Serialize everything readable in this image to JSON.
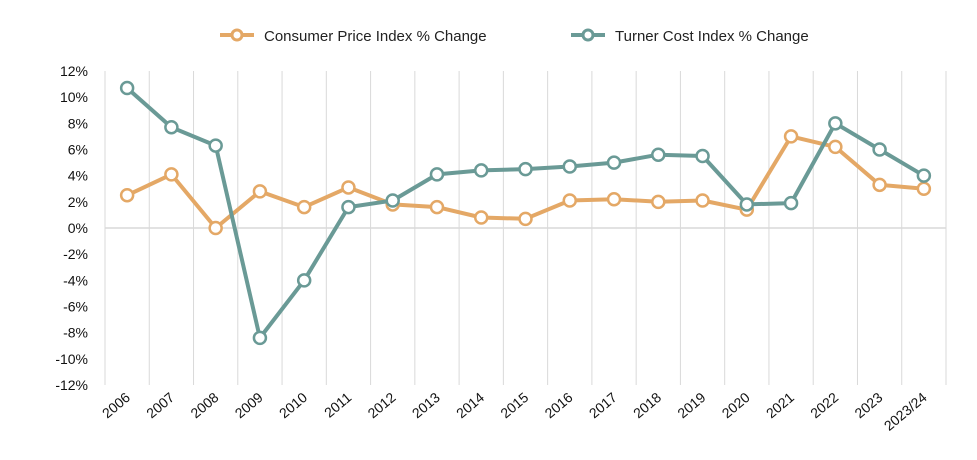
{
  "chart_data": {
    "type": "line",
    "title": "",
    "xlabel": "",
    "ylabel": "",
    "categories": [
      "2006",
      "2007",
      "2008",
      "2009",
      "2010",
      "2011",
      "2012",
      "2013",
      "2014",
      "2015",
      "2016",
      "2017",
      "2018",
      "2019",
      "2020",
      "2021",
      "2022",
      "2023",
      "2023/24"
    ],
    "y_ticks": [
      "12%",
      "10%",
      "8%",
      "6%",
      "4%",
      "2%",
      "0%",
      "-2%",
      "-4%",
      "-6%",
      "-8%",
      "-10%",
      "-12%"
    ],
    "ylim": [
      -12,
      12
    ],
    "grid": "vertical",
    "legend_position": "top-center",
    "series": [
      {
        "name": "Consumer Price Index % Change",
        "color": "#E4A866",
        "values": [
          2.5,
          4.1,
          0.0,
          2.8,
          1.6,
          3.1,
          1.8,
          1.6,
          0.8,
          0.7,
          2.1,
          2.2,
          2.0,
          2.1,
          1.4,
          7.0,
          6.2,
          3.3,
          3.0
        ]
      },
      {
        "name": "Turner Cost Index % Change",
        "color": "#6A9A96",
        "values": [
          10.7,
          7.7,
          6.3,
          -8.4,
          -4.0,
          1.6,
          2.1,
          4.1,
          4.4,
          4.5,
          4.7,
          5.0,
          5.6,
          5.5,
          1.8,
          1.9,
          8.0,
          6.0,
          4.0
        ]
      }
    ]
  }
}
